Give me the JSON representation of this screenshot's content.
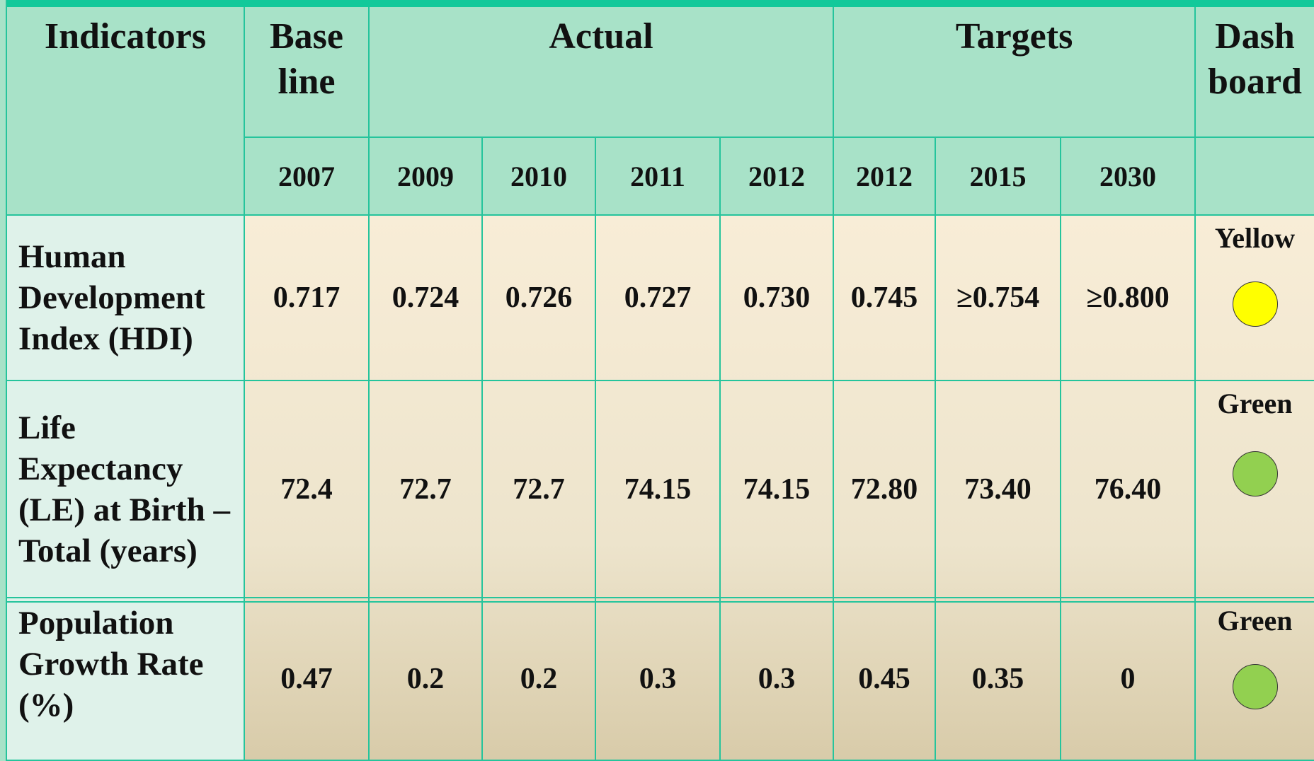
{
  "header": {
    "indicators": "Indicators",
    "baseline": "Base line",
    "actual": "Actual",
    "targets": "Targets",
    "dashboard": "Dash board",
    "years": [
      "2007",
      "2009",
      "2010",
      "2011",
      "2012",
      "2012",
      "2015",
      "2030"
    ]
  },
  "rows": [
    {
      "indicator": "Human Development Index (HDI)",
      "values": [
        "0.717",
        "0.724",
        "0.726",
        "0.727",
        "0.730",
        "0.745",
        "≥0.754",
        "≥0.800"
      ],
      "status": "Yellow",
      "color": "#ffff00"
    },
    {
      "indicator": "Life Expectancy (LE) at Birth – Total (years)",
      "values": [
        "72.4",
        "72.7",
        "72.7",
        "74.15",
        "74.15",
        "72.80",
        "73.40",
        "76.40"
      ],
      "status": "Green",
      "color": "#92d050"
    },
    {
      "indicator": "Population Growth Rate (%)",
      "values": [
        "0.47",
        "0.2",
        "0.2",
        "0.3",
        "0.3",
        "0.45",
        "0.35",
        "0"
      ],
      "status": "Green",
      "color": "#92d050"
    }
  ]
}
